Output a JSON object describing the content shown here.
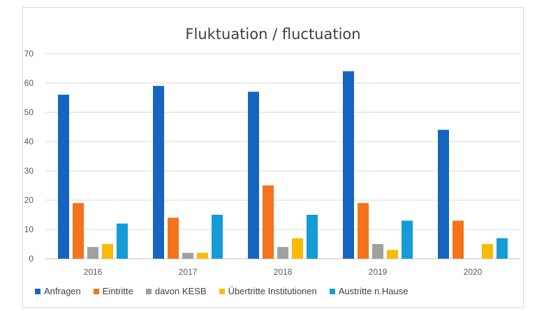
{
  "chart_data": {
    "type": "bar",
    "title": "Fluktuation / fluctuation",
    "categories": [
      "2016",
      "2017",
      "2018",
      "2019",
      "2020"
    ],
    "ylim": [
      0,
      70
    ],
    "yticks": [
      0,
      10,
      20,
      30,
      40,
      50,
      60,
      70
    ],
    "grid": true,
    "legend_position": "bottom",
    "series": [
      {
        "name": "Anfragen",
        "color": "#1565C0",
        "values": [
          56,
          59,
          57,
          64,
          44
        ]
      },
      {
        "name": "Eintritte",
        "color": "#F4731C",
        "values": [
          19,
          14,
          25,
          19,
          13
        ]
      },
      {
        "name": "davon KESB",
        "color": "#A0A0A0",
        "values": [
          4,
          2,
          4,
          5,
          0
        ]
      },
      {
        "name": "Übertritte Institutionen",
        "color": "#FBBA07",
        "values": [
          5,
          2,
          7,
          3,
          5
        ]
      },
      {
        "name": "Austritte n.Hause",
        "color": "#159BD6",
        "values": [
          12,
          15,
          15,
          13,
          7
        ]
      }
    ]
  }
}
